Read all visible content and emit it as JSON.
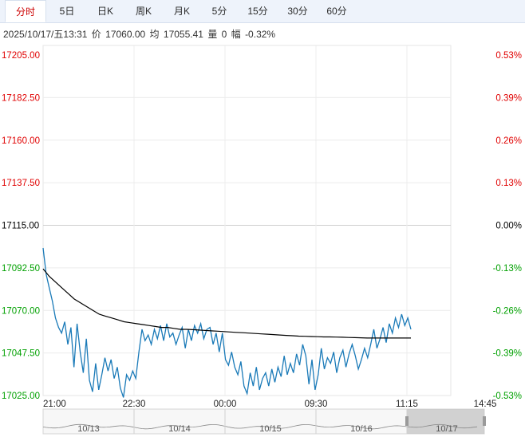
{
  "tabs": [
    {
      "label": "分时",
      "active": true
    },
    {
      "label": "5日",
      "active": false
    },
    {
      "label": "日K",
      "active": false
    },
    {
      "label": "周K",
      "active": false
    },
    {
      "label": "月K",
      "active": false
    },
    {
      "label": "5分",
      "active": false
    },
    {
      "label": "15分",
      "active": false
    },
    {
      "label": "30分",
      "active": false
    },
    {
      "label": "60分",
      "active": false
    }
  ],
  "info": {
    "datetime": "2025/10/17/五13:31",
    "price_label": "价",
    "price": "17060.00",
    "avg_label": "均",
    "avg": "17055.41",
    "volume_label": "量",
    "volume": "0",
    "change_label": "幅",
    "change": "-0.32%"
  },
  "colors": {
    "up": "#e00000",
    "down": "#00a000",
    "flat": "#000000",
    "price_line": "#1a7ab8",
    "avg_line": "#000000",
    "grid": "#e6e6e6"
  },
  "chart_data": {
    "type": "line",
    "ylim": [
      17025.0,
      17205.0
    ],
    "prev_close": 17115.0,
    "y_ticks": [
      "17205.00",
      "17182.50",
      "17160.00",
      "17137.50",
      "17115.00",
      "17092.50",
      "17070.00",
      "17047.50",
      "17025.00"
    ],
    "pct_ticks": [
      "0.53%",
      "0.39%",
      "0.26%",
      "0.13%",
      "0.00%",
      "-0.13%",
      "-0.26%",
      "-0.39%",
      "-0.53%"
    ],
    "x_ticks": [
      "21:00",
      "22:30",
      "00:00",
      "09:30",
      "11:15",
      "14:45"
    ],
    "series": [
      {
        "name": "价",
        "values": [
          17103,
          17089,
          17082,
          17075,
          17066,
          17061,
          17058,
          17064,
          17052,
          17061,
          17040,
          17063,
          17048,
          17037,
          17055,
          17033,
          17027,
          17042,
          17028,
          17036,
          17045,
          17038,
          17044,
          17034,
          17040,
          17029,
          17024,
          17036,
          17033,
          17038,
          17034,
          17048,
          17060,
          17054,
          17057,
          17052,
          17060,
          17055,
          17062,
          17054,
          17063,
          17056,
          17058,
          17052,
          17057,
          17061,
          17050,
          17060,
          17054,
          17062,
          17058,
          17063,
          17055,
          17060,
          17061,
          17052,
          17058,
          17048,
          17058,
          17044,
          17041,
          17048,
          17040,
          17036,
          17043,
          17030,
          17026,
          17037,
          17030,
          17040,
          17028,
          17034,
          17037,
          17030,
          17039,
          17032,
          17040,
          17035,
          17046,
          17036,
          17042,
          17037,
          17047,
          17041,
          17052,
          17046,
          17031,
          17044,
          17028,
          17036,
          17050,
          17039,
          17045,
          17042,
          17048,
          17037,
          17045,
          17049,
          17040,
          17047,
          17052,
          17046,
          17039,
          17044,
          17050,
          17045,
          17052,
          17060,
          17050,
          17055,
          17061,
          17053,
          17063,
          17058,
          17066,
          17061,
          17068,
          17062,
          17066,
          17060
        ]
      },
      {
        "name": "均",
        "values": [
          17092,
          17088,
          17085,
          17082,
          17079,
          17076,
          17074,
          17072,
          17070,
          17068,
          17067,
          17066,
          17065,
          17064,
          17063.5,
          17063,
          17062.5,
          17062,
          17061.5,
          17061,
          17061,
          17060.5,
          17060,
          17060,
          17059.8,
          17059.6,
          17059.4,
          17059.2,
          17059,
          17058.8,
          17058.6,
          17058.4,
          17058.2,
          17058,
          17057.8,
          17057.6,
          17057.4,
          17057.2,
          17057,
          17056.8,
          17056.6,
          17056.4,
          17056.3,
          17056.2,
          17056.1,
          17056,
          17056,
          17055.9,
          17055.8,
          17055.7,
          17055.6,
          17055.5,
          17055.4,
          17055.4,
          17055.4,
          17055.4,
          17055.4,
          17055.4,
          17055.4,
          17055.41
        ]
      }
    ]
  },
  "navigator": {
    "dates": [
      "10/13",
      "10/14",
      "10/15",
      "10/16",
      "10/17"
    ]
  }
}
